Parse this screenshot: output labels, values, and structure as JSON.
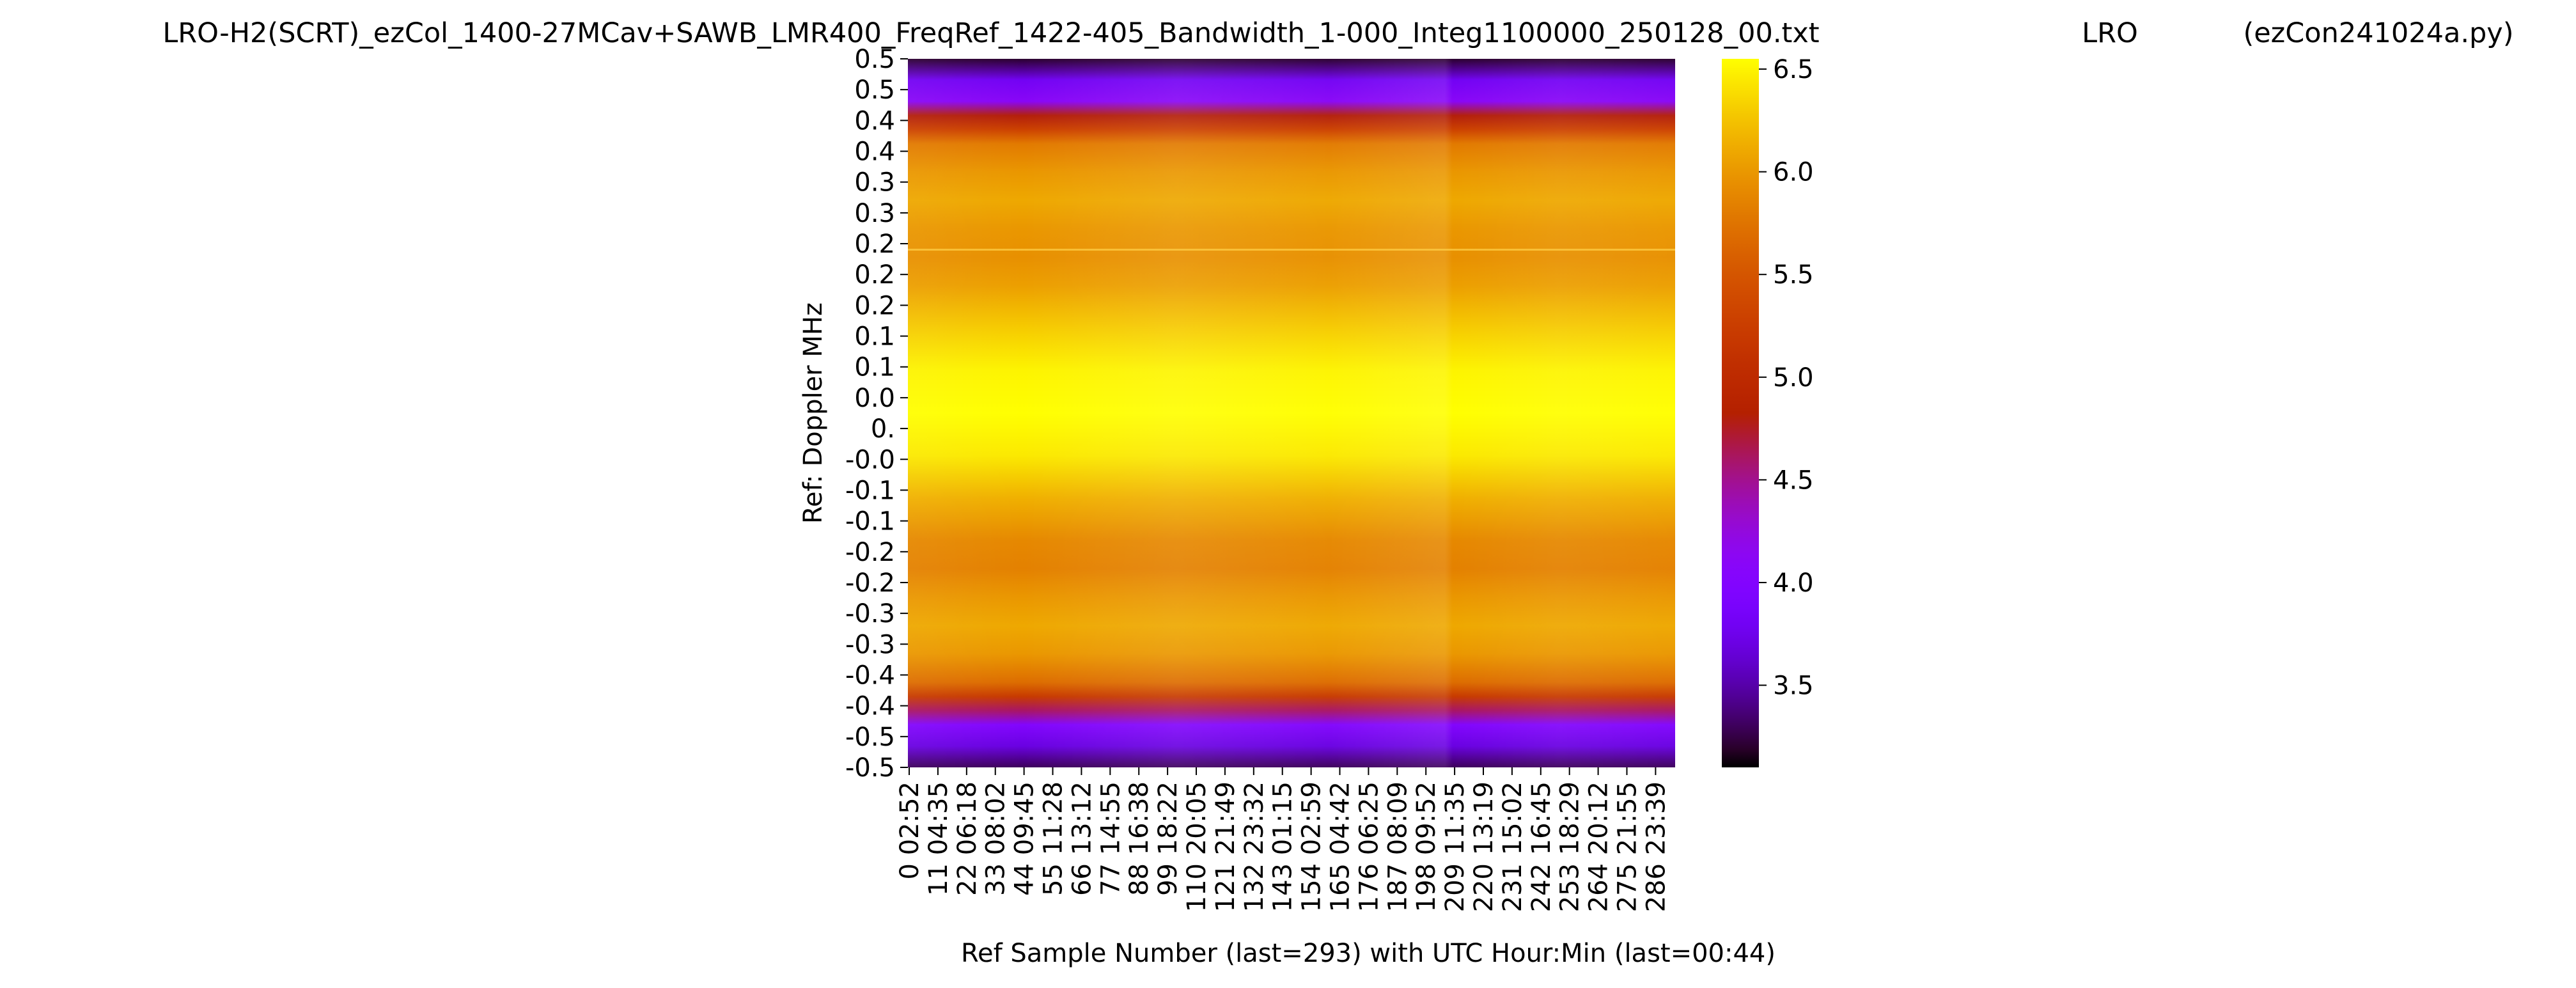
{
  "chart_data": {
    "type": "heatmap",
    "title": "LRO-H2(SCRT)_ezCol_1400-27MCav+SAWB_LMR400_FreqRef_1422-405_Bandwidth_1-000_Integ1100000_250128_00.txt",
    "title_mid": "LRO",
    "title_right": "(ezCon241024a.py)",
    "xlabel": "Ref Sample Number (last=293) with UTC Hour:Min (last=00:44)",
    "ylabel": "Ref:  Doppler MHz",
    "x_count": 294,
    "x_tick_samples": [
      "0",
      "11",
      "22",
      "33",
      "44",
      "55",
      "66",
      "77",
      "88",
      "99",
      "110",
      "121",
      "132",
      "143",
      "154",
      "165",
      "176",
      "187",
      "198",
      "209",
      "220",
      "231",
      "242",
      "253",
      "264",
      "275",
      "286"
    ],
    "x_tick_times": [
      "02:52",
      "04:35",
      "06:18",
      "08:02",
      "09:45",
      "11:28",
      "13:12",
      "14:55",
      "16:38",
      "18:22",
      "20:05",
      "21:49",
      "23:32",
      "01:15",
      "02:59",
      "04:42",
      "06:25",
      "08:09",
      "09:52",
      "11:35",
      "13:19",
      "15:02",
      "16:45",
      "18:29",
      "20:12",
      "21:55",
      "23:39"
    ],
    "y_tick_labels": [
      "0.5",
      "0.5",
      "0.4",
      "0.4",
      "0.3",
      "0.3",
      "0.2",
      "0.2",
      "0.2",
      "0.1",
      "0.1",
      "0.0",
      "0.",
      "-0.0",
      "-0.1",
      "-0.1",
      "-0.2",
      "-0.2",
      "-0.3",
      "-0.3",
      "-0.4",
      "-0.4",
      "-0.5",
      "-0.5"
    ],
    "colorbar": {
      "colormap": "gnuplot",
      "min": 3.1,
      "max": 6.55,
      "ticks": [
        3.5,
        4.0,
        4.5,
        5.0,
        5.5,
        6.0,
        6.5
      ],
      "tick_labels": [
        "3.5",
        "4.0",
        "4.5",
        "5.0",
        "5.5",
        "6.0",
        "6.5"
      ]
    },
    "doppler_profile": {
      "doppler_mhz": [
        0.5,
        0.47,
        0.44,
        0.42,
        0.4,
        0.38,
        0.34,
        0.3,
        0.26,
        0.22,
        0.18,
        0.12,
        0.06,
        0.0,
        -0.06,
        -0.12,
        -0.18,
        -0.22,
        -0.26,
        -0.3,
        -0.34,
        -0.38,
        -0.4,
        -0.42,
        -0.44,
        -0.47,
        -0.5
      ],
      "values": [
        3.2,
        3.8,
        4.1,
        4.8,
        5.3,
        5.8,
        6.0,
        6.1,
        6.0,
        5.95,
        6.05,
        6.3,
        6.5,
        6.55,
        6.45,
        6.15,
        5.9,
        5.85,
        6.0,
        6.1,
        6.0,
        5.7,
        5.2,
        4.6,
        4.0,
        3.7,
        3.3
      ]
    }
  }
}
